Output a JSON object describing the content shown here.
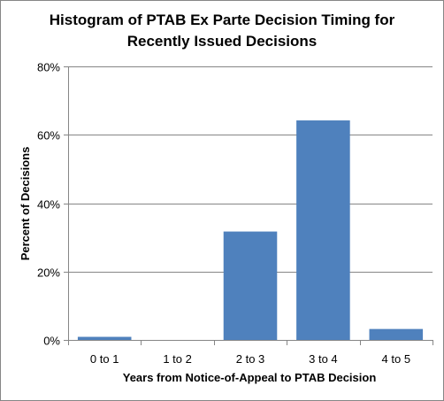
{
  "chart_data": {
    "type": "bar",
    "title_lines": [
      "Histogram of PTAB Ex Parte Decision Timing for",
      "Recently Issued Decisions"
    ],
    "xlabel": "Years from Notice-of-Appeal to PTAB Decision",
    "ylabel": "Percent of Decisions",
    "categories": [
      "0 to 1",
      "1 to 2",
      "2 to 3",
      "3 to 4",
      "4 to 5"
    ],
    "values": [
      0.9,
      0,
      31.7,
      64.2,
      3.2
    ],
    "ylim": [
      0,
      80
    ],
    "yticks": [
      0,
      20,
      40,
      60,
      80
    ],
    "ytick_labels": [
      "0%",
      "20%",
      "40%",
      "60%",
      "80%"
    ],
    "bar_color": "#4f81bd",
    "grid": true,
    "legend": "none"
  }
}
